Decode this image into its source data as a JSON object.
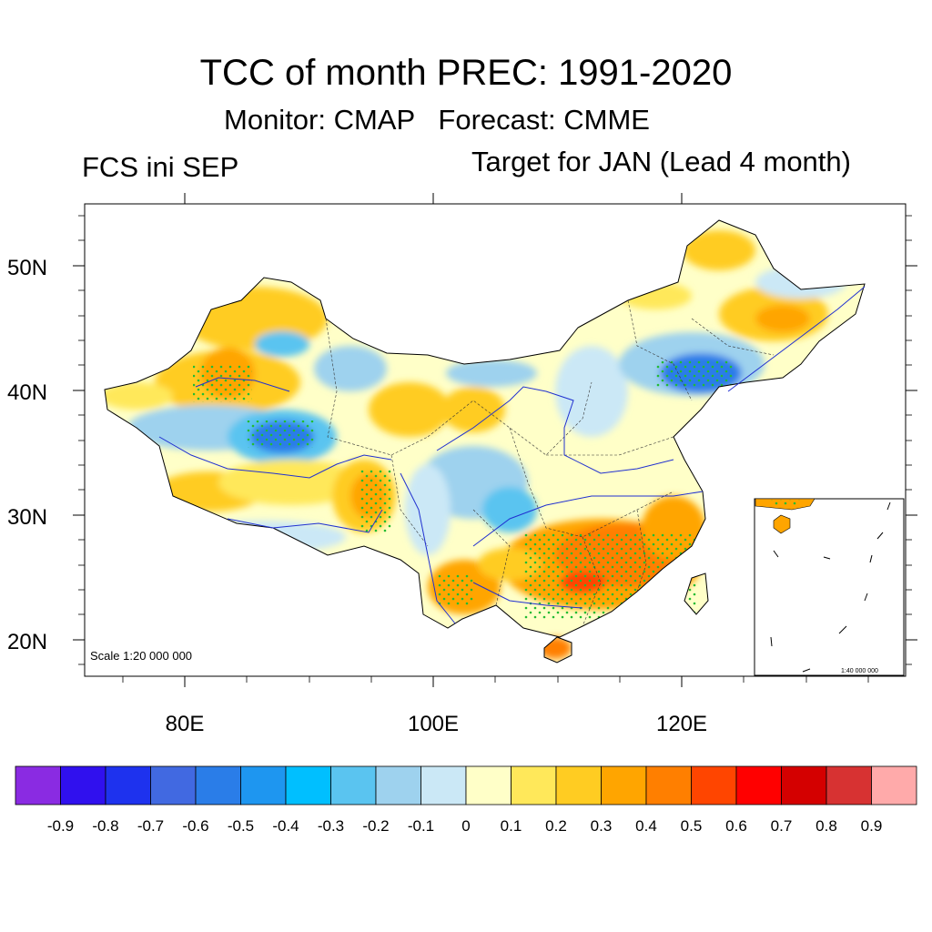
{
  "header": {
    "title": "TCC of month PREC: 1991-2020",
    "subtitle": "Monitor: CMAP   Forecast: CMME",
    "left_label": "FCS ini SEP",
    "right_label": "Target for JAN (Lead 4 month)"
  },
  "map": {
    "scale_label": "Scale 1:20 000 000",
    "inset_scale_label": "1:40 000 000",
    "lat_labels": [
      "50N",
      "40N",
      "30N",
      "20N"
    ],
    "lon_labels": [
      "80E",
      "100E",
      "120E"
    ],
    "stipple_color": "#22bb33"
  },
  "colorbar": {
    "colors": [
      "#8a2be2",
      "#3010ee",
      "#1e32ee",
      "#4169e1",
      "#2a7de8",
      "#1e96f0",
      "#00bfff",
      "#5ac4f0",
      "#9ed2ee",
      "#cbe8f6",
      "#ffffc8",
      "#ffe85a",
      "#ffcc22",
      "#ffa500",
      "#ff7f00",
      "#ff4500",
      "#ff0000",
      "#d40000",
      "#d73232",
      "#ffaaaa"
    ],
    "labels": [
      "-0.9",
      "-0.8",
      "-0.7",
      "-0.6",
      "-0.5",
      "-0.4",
      "-0.3",
      "-0.2",
      "-0.1",
      "0",
      "0.1",
      "0.2",
      "0.3",
      "0.4",
      "0.5",
      "0.6",
      "0.7",
      "0.8",
      "0.9"
    ]
  }
}
